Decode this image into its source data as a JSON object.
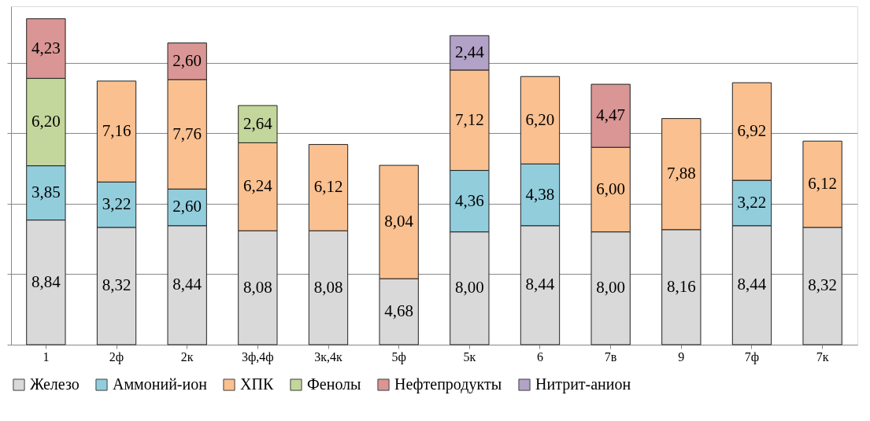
{
  "chart_data": {
    "type": "bar",
    "stacked": true,
    "legend": "bottom",
    "grid": "y",
    "tick_labels": "x",
    "categories": [
      "1",
      "2ф",
      "2к",
      "3ф,4ф",
      "3к,4к",
      "5ф",
      "5к",
      "6",
      "7в",
      "9",
      "7ф",
      "7к"
    ],
    "series": [
      {
        "name": "Железо",
        "color": "#d9d9d9",
        "values": [
          8.84,
          8.32,
          8.44,
          8.08,
          8.08,
          4.68,
          8.0,
          8.44,
          8.0,
          8.16,
          8.44,
          8.32
        ],
        "value_labels": [
          "8,84",
          "8,32",
          "8,44",
          "8,08",
          "8,08",
          "4,68",
          "8,00",
          "8,44",
          "8,00",
          "8,16",
          "8,44",
          "8,32"
        ]
      },
      {
        "name": "Аммоний-ион",
        "color": "#92cddc",
        "values": [
          3.85,
          3.22,
          2.6,
          null,
          null,
          null,
          4.36,
          4.38,
          null,
          null,
          3.22,
          null
        ],
        "value_labels": [
          "3,85",
          "3,22",
          "2,60",
          null,
          null,
          null,
          "4,36",
          "4,38",
          null,
          null,
          "3,22",
          null
        ]
      },
      {
        "name": "ХПК",
        "color": "#fac090",
        "values": [
          null,
          7.16,
          7.76,
          6.24,
          6.12,
          8.04,
          7.12,
          6.2,
          6.0,
          7.88,
          6.92,
          6.12
        ],
        "value_labels": [
          null,
          "7,16",
          "7,76",
          "6,24",
          "6,12",
          "8,04",
          "7,12",
          "6,20",
          "6,00",
          "7,88",
          "6,92",
          "6,12"
        ]
      },
      {
        "name": "Фенолы",
        "color": "#c3d69b",
        "values": [
          6.2,
          null,
          null,
          2.64,
          null,
          null,
          null,
          null,
          null,
          null,
          null,
          null
        ],
        "value_labels": [
          "6,20",
          null,
          null,
          "2,64",
          null,
          null,
          null,
          null,
          null,
          null,
          null,
          null
        ]
      },
      {
        "name": "Нефтепродукты",
        "color": "#d99694",
        "values": [
          4.23,
          null,
          2.6,
          null,
          null,
          null,
          null,
          null,
          4.47,
          null,
          null,
          null
        ],
        "value_labels": [
          "4,23",
          null,
          "2,60",
          null,
          null,
          null,
          null,
          null,
          "4,47",
          null,
          null,
          null
        ]
      },
      {
        "name": "Нитрит-анион",
        "color": "#b3a2c7",
        "values": [
          null,
          null,
          null,
          null,
          null,
          null,
          2.44,
          null,
          null,
          null,
          null,
          null
        ],
        "value_labels": [
          null,
          null,
          null,
          null,
          null,
          null,
          "2,44",
          null,
          null,
          null,
          null,
          null
        ]
      }
    ]
  }
}
